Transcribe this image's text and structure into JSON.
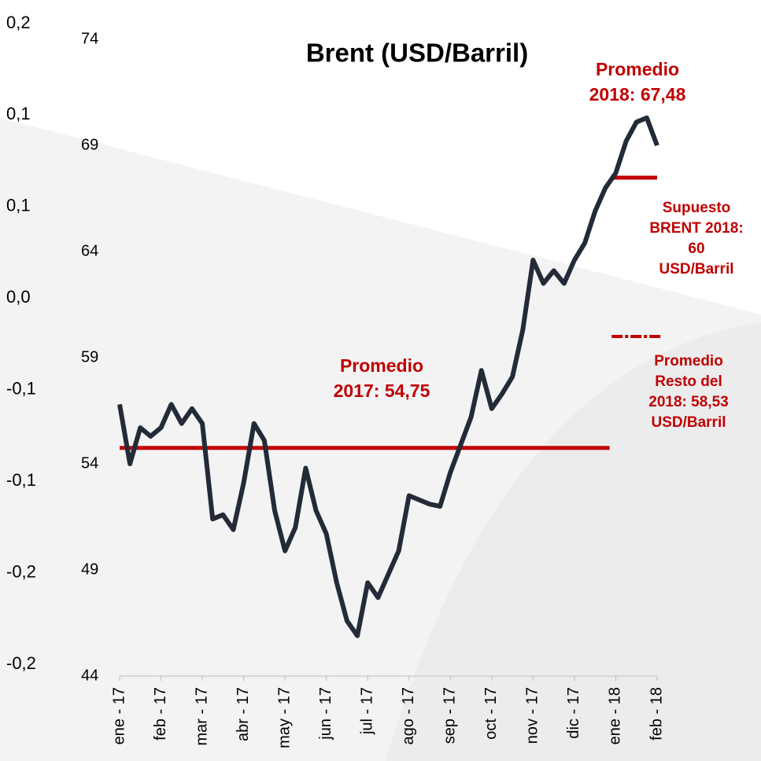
{
  "chart_data": {
    "type": "line",
    "title": "Brent (USD/Barril)",
    "x": [
      0,
      0.25,
      0.5,
      0.75,
      1,
      1.25,
      1.5,
      1.75,
      2,
      2.25,
      2.5,
      2.75,
      3,
      3.25,
      3.5,
      3.75,
      4,
      4.25,
      4.5,
      4.75,
      5,
      5.25,
      5.5,
      5.75,
      6,
      6.25,
      6.5,
      6.75,
      7,
      7.25,
      7.5,
      7.75,
      8,
      8.25,
      8.5,
      8.75,
      9,
      9.25,
      9.5,
      9.75,
      10,
      10.25,
      10.5,
      10.75,
      11,
      11.25,
      11.5,
      11.75,
      12,
      12.25,
      12.5,
      12.75,
      13
    ],
    "series": [
      {
        "color": "#232b38",
        "values": [
          56.8,
          54.0,
          55.7,
          55.3,
          55.7,
          56.8,
          55.9,
          56.6,
          55.9,
          51.4,
          51.6,
          50.9,
          53.1,
          55.9,
          55.1,
          51.8,
          49.9,
          51.0,
          53.8,
          51.8,
          50.7,
          48.4,
          46.6,
          45.9,
          48.4,
          47.7,
          48.8,
          49.9,
          52.5,
          52.3,
          52.1,
          52.0,
          53.6,
          54.9,
          56.2,
          58.4,
          56.6,
          57.3,
          58.1,
          60.3,
          63.6,
          62.5,
          63.1,
          62.5,
          63.6,
          64.4,
          65.9,
          67.0,
          67.7,
          69.2,
          70.1,
          70.3,
          69.0
        ]
      }
    ],
    "xlim": [
      0,
      13
    ],
    "xticks": [
      {
        "value": 0,
        "label": "ene - 17"
      },
      {
        "value": 1,
        "label": "feb - 17"
      },
      {
        "value": 2,
        "label": "mar - 17"
      },
      {
        "value": 3,
        "label": "abr - 17"
      },
      {
        "value": 4,
        "label": "may - 17"
      },
      {
        "value": 5,
        "label": "jun - 17"
      },
      {
        "value": 6,
        "label": "jul - 17"
      },
      {
        "value": 7,
        "label": "ago - 17"
      },
      {
        "value": 8,
        "label": "sep - 17"
      },
      {
        "value": 9,
        "label": "oct - 17"
      },
      {
        "value": 10,
        "label": "nov - 17"
      },
      {
        "value": 11,
        "label": "dic - 17"
      },
      {
        "value": 12,
        "label": "ene - 18"
      },
      {
        "value": 13,
        "label": "feb - 18"
      }
    ],
    "ylim": [
      44,
      74
    ],
    "yticks": [
      44,
      49,
      54,
      59,
      64,
      69,
      74
    ],
    "y2lim": [
      -0.241,
      0.2
    ],
    "y2ticks": [
      {
        "value": 0.2,
        "label": "0,2"
      },
      {
        "value": 0.137,
        "label": "0,1"
      },
      {
        "value": 0.074,
        "label": "0,1"
      },
      {
        "value": 0.011,
        "label": "0,0"
      },
      {
        "value": -0.052,
        "label": "-0,1"
      },
      {
        "value": -0.115,
        "label": "-0,1"
      },
      {
        "value": -0.178,
        "label": "-0,2"
      },
      {
        "value": -0.241,
        "label": "-0,2"
      }
    ],
    "reference_lines": [
      {
        "value": 54.75,
        "x0": 0,
        "x1": 11.85,
        "color": "#c00000",
        "dashed": false
      },
      {
        "value": 67.48,
        "x0": 11.95,
        "x1": 13.0,
        "color": "#c00000",
        "dashed": false
      },
      {
        "value": 60,
        "x0": 11.9,
        "x1": 13.1,
        "color": "#c00000",
        "dashed": true
      }
    ],
    "annotations": [
      {
        "lines": [
          "Promedio",
          "2018: 67,48"
        ],
        "color": "#c00000"
      },
      {
        "lines": [
          "Promedio",
          "2017: 54,75"
        ],
        "color": "#c00000"
      },
      {
        "lines": [
          "Supuesto",
          "BRENT 2018:",
          "60",
          "USD/Barril"
        ],
        "color": "#c00000"
      },
      {
        "lines": [
          "Promedio",
          "Resto del",
          "2018: 58,53",
          "USD/Barril"
        ],
        "color": "#c00000"
      }
    ]
  }
}
